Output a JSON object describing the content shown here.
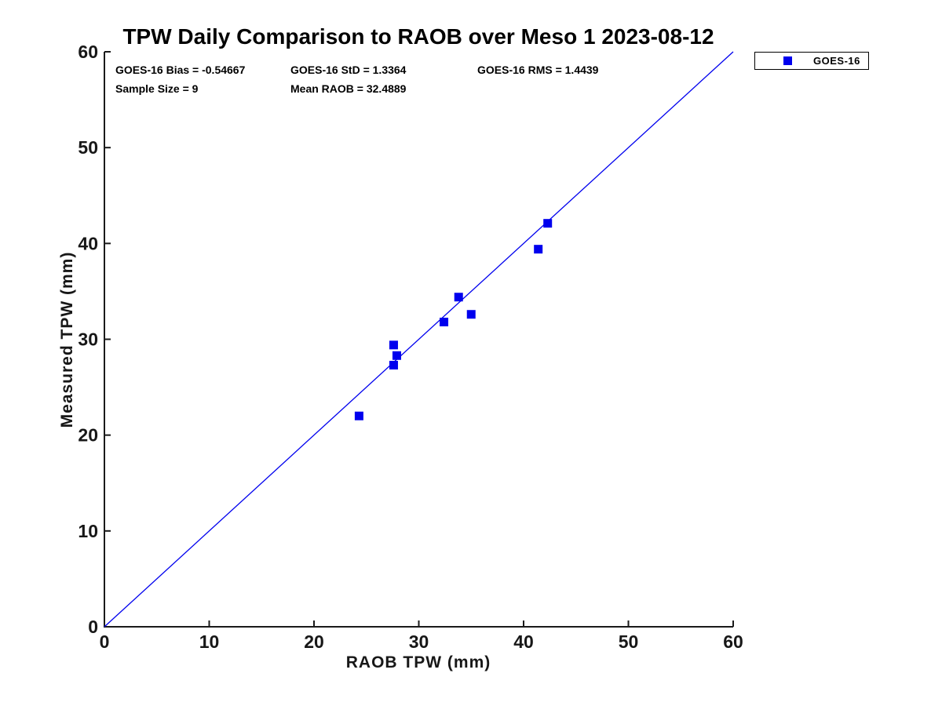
{
  "chart_data": {
    "type": "scatter",
    "title": "TPW Daily Comparison to RAOB over Meso 1 2023-08-12",
    "xlabel": "RAOB TPW (mm)",
    "ylabel": "Measured TPW (mm)",
    "xlim": [
      0,
      60
    ],
    "ylim": [
      0,
      60
    ],
    "xticks": [
      0,
      10,
      20,
      30,
      40,
      50,
      60
    ],
    "yticks": [
      0,
      10,
      20,
      30,
      40,
      50,
      60
    ],
    "grid": false,
    "legend_position": "outside-top-right",
    "series": [
      {
        "name": "GOES-16",
        "marker": "filled-square",
        "color": "#0000ee",
        "points": [
          [
            24.3,
            22.0
          ],
          [
            27.6,
            27.3
          ],
          [
            27.9,
            28.3
          ],
          [
            27.6,
            29.4
          ],
          [
            32.4,
            31.8
          ],
          [
            33.8,
            34.4
          ],
          [
            35.0,
            32.6
          ],
          [
            41.4,
            39.4
          ],
          [
            42.3,
            42.1
          ]
        ]
      }
    ],
    "reference_line": {
      "label": "1:1 line",
      "from": [
        0,
        0
      ],
      "to": [
        60,
        60
      ],
      "color": "#0000ee"
    },
    "annotations": {
      "bias": "GOES-16 Bias = -0.54667",
      "std": "GOES-16 StD = 1.3364",
      "rms": "GOES-16 RMS = 1.4439",
      "sample_size": "Sample Size = 9",
      "mean_raob": "Mean RAOB = 32.4889"
    }
  }
}
